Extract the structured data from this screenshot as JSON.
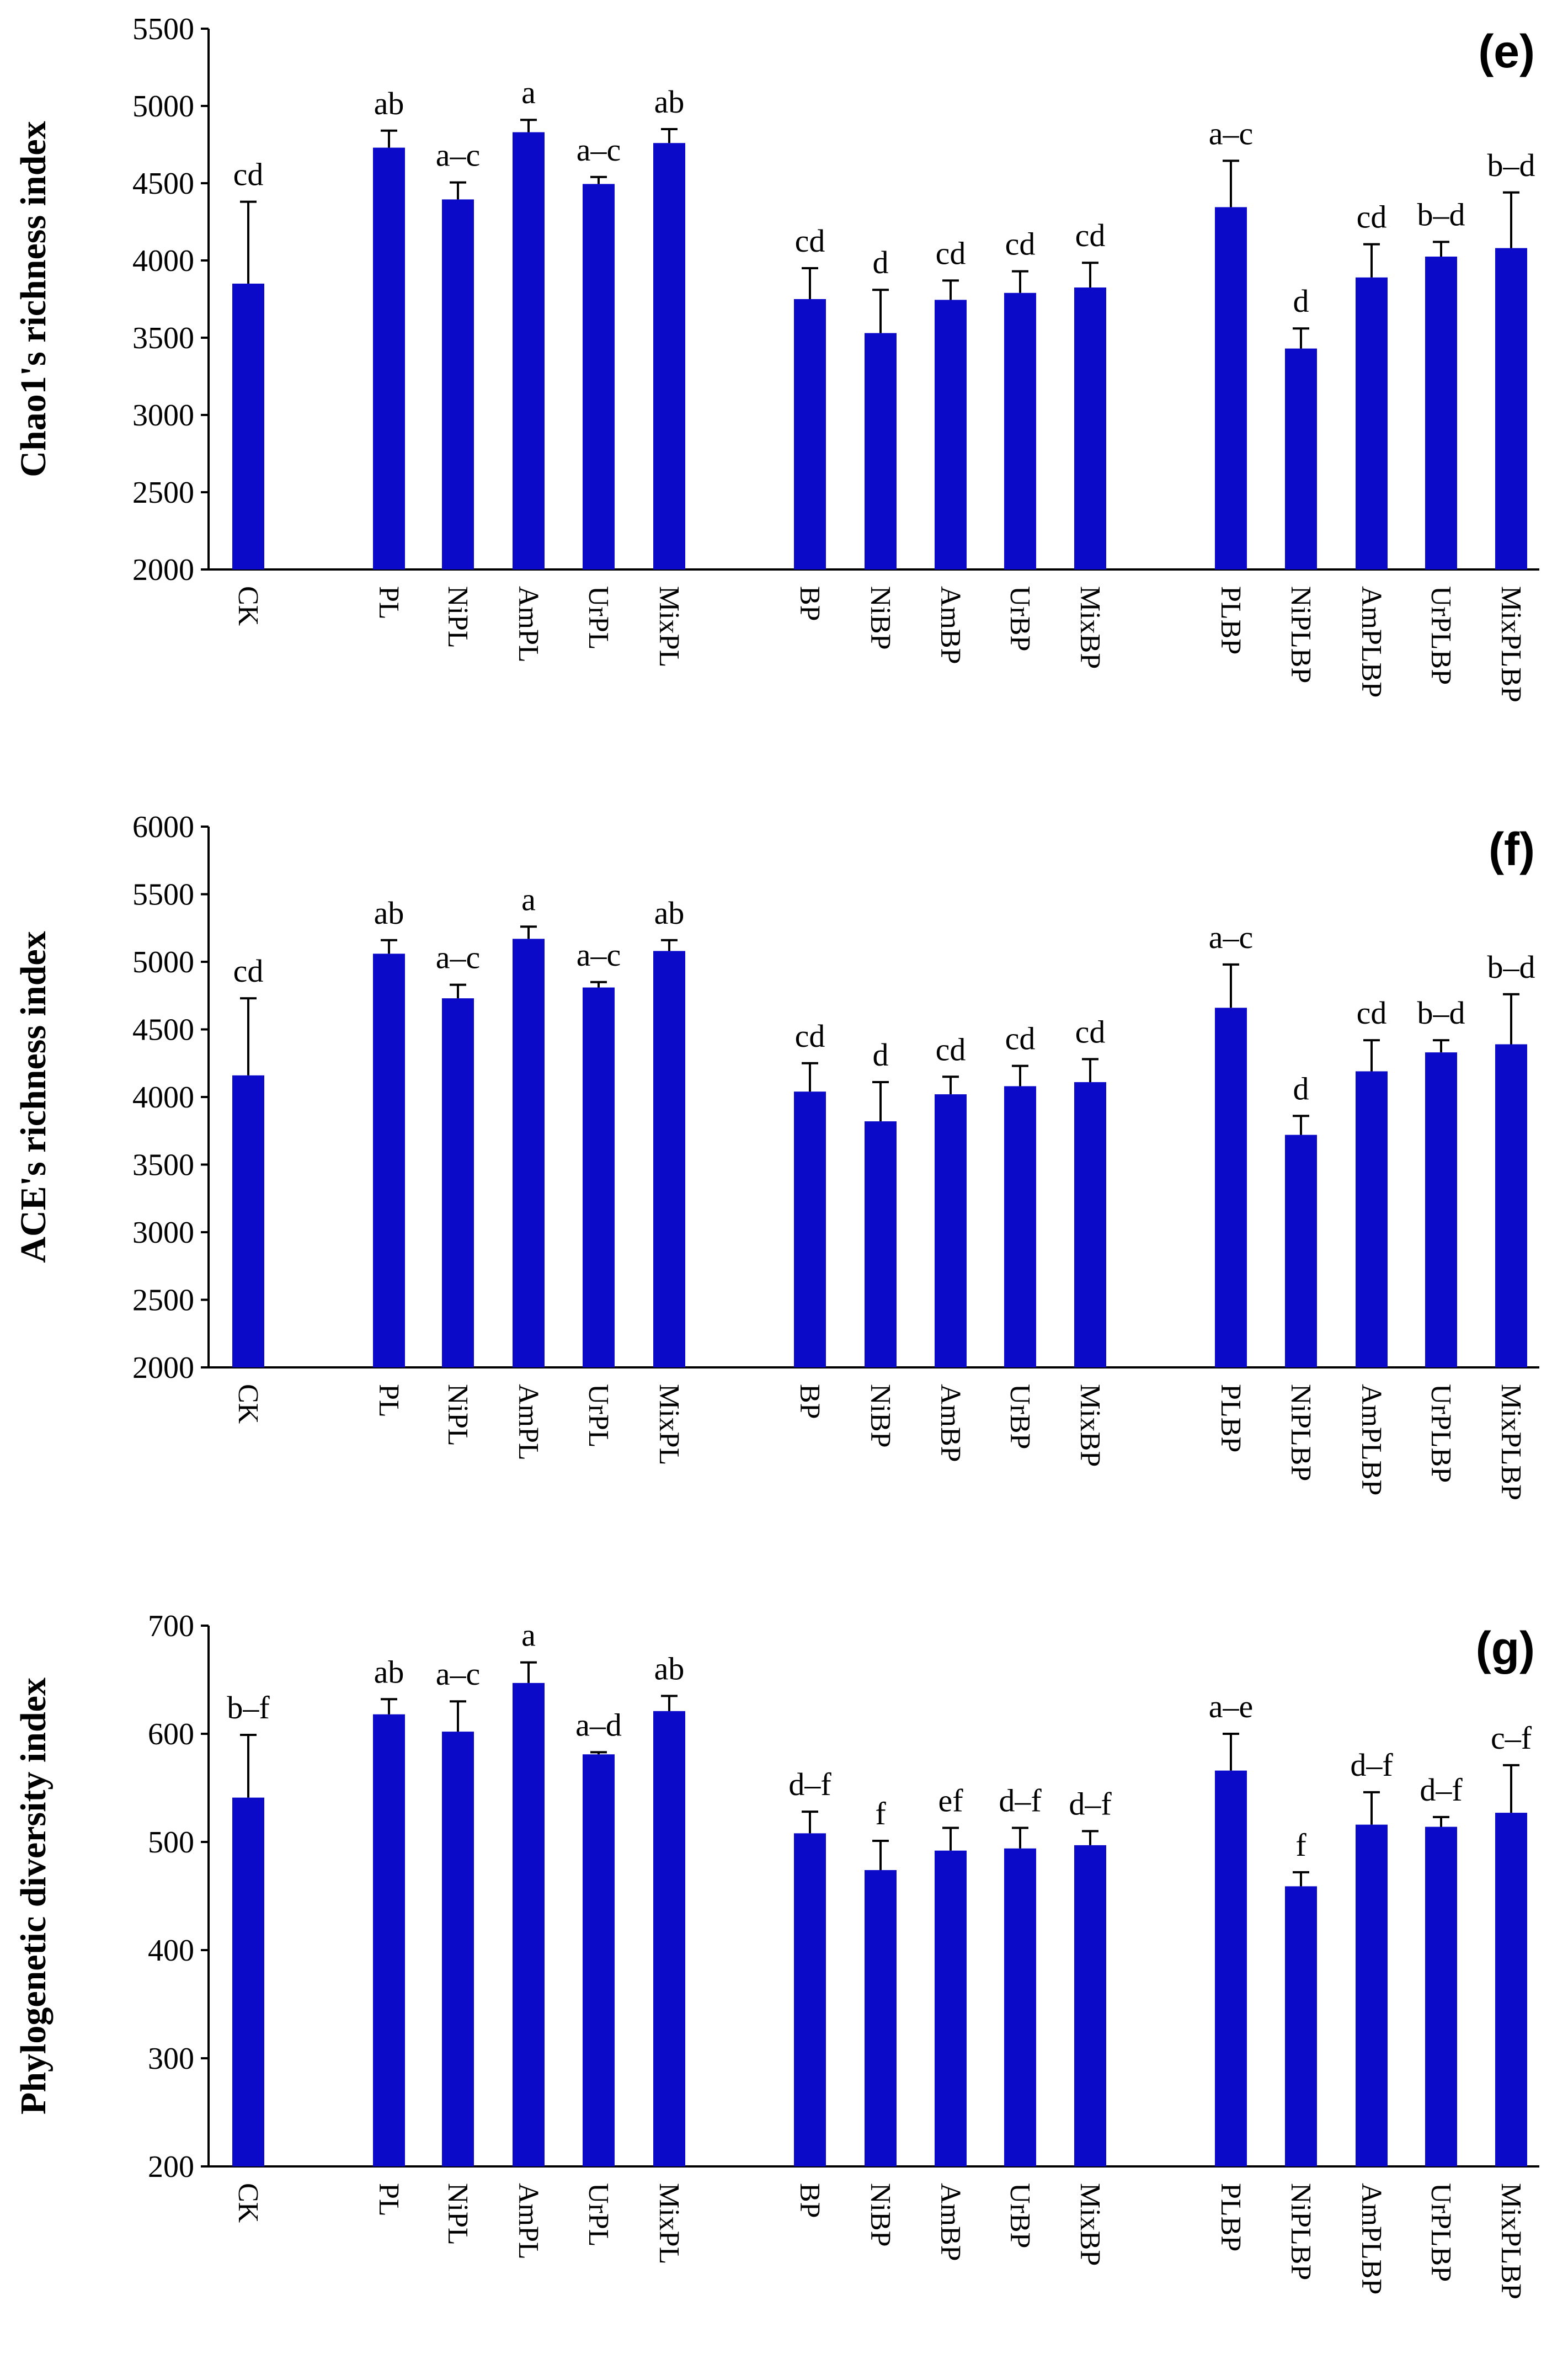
{
  "chart_data": [
    {
      "type": "bar",
      "panel_label": "(e)",
      "title": "",
      "xlabel": "",
      "ylabel": "Chao1's richness index",
      "ylim": [
        2000,
        5500
      ],
      "yticks": [
        2000,
        2500,
        3000,
        3500,
        4000,
        4500,
        5000,
        5500
      ],
      "categories": [
        "CK",
        "PL",
        "NiPL",
        "AmPL",
        "UrPL",
        "MixPL",
        "BP",
        "NiBP",
        "AmBP",
        "UrBP",
        "MixBP",
        "PLBP",
        "NiPLBP",
        "AmPLBP",
        "UrPLBP",
        "MixPLBP"
      ],
      "values": [
        3850,
        4730,
        4395,
        4830,
        4495,
        4760,
        3750,
        3530,
        3745,
        3790,
        3825,
        4345,
        3430,
        3890,
        4025,
        4080
      ],
      "errors": [
        530,
        110,
        110,
        80,
        45,
        90,
        200,
        280,
        125,
        140,
        160,
        300,
        130,
        215,
        95,
        360
      ],
      "letters": [
        "cd",
        "ab",
        "a–c",
        "a",
        "a–c",
        "ab",
        "cd",
        "d",
        "cd",
        "cd",
        "cd",
        "a–c",
        "d",
        "cd",
        "b–d",
        "b–d"
      ],
      "bar_color": "#0a0ac8",
      "grid": false
    },
    {
      "type": "bar",
      "panel_label": "(f)",
      "title": "",
      "xlabel": "",
      "ylabel": "ACE's richness index",
      "ylim": [
        2000,
        6000
      ],
      "yticks": [
        2000,
        2500,
        3000,
        3500,
        4000,
        4500,
        5000,
        5500,
        6000
      ],
      "categories": [
        "CK",
        "PL",
        "NiPL",
        "AmPL",
        "UrPL",
        "MixPL",
        "BP",
        "NiBP",
        "AmBP",
        "UrBP",
        "MixBP",
        "PLBP",
        "NiPLBP",
        "AmPLBP",
        "UrPLBP",
        "MixPLBP"
      ],
      "values": [
        4160,
        5060,
        4730,
        5170,
        4810,
        5080,
        4040,
        3820,
        4020,
        4080,
        4110,
        4660,
        3720,
        4190,
        4330,
        4390
      ],
      "errors": [
        570,
        100,
        100,
        90,
        40,
        80,
        210,
        290,
        130,
        150,
        170,
        320,
        140,
        230,
        90,
        370
      ],
      "letters": [
        "cd",
        "ab",
        "a–c",
        "a",
        "a–c",
        "ab",
        "cd",
        "d",
        "cd",
        "cd",
        "cd",
        "a–c",
        "d",
        "cd",
        "b–d",
        "b–d"
      ],
      "bar_color": "#0a0ac8",
      "grid": false
    },
    {
      "type": "bar",
      "panel_label": "(g)",
      "title": "",
      "xlabel": "",
      "ylabel": "Phylogenetic diversity index",
      "ylim": [
        200,
        700
      ],
      "yticks": [
        200,
        300,
        400,
        500,
        600,
        700
      ],
      "categories": [
        "CK",
        "PL",
        "NiPL",
        "AmPL",
        "UrPL",
        "MixPL",
        "BP",
        "NiBP",
        "AmBP",
        "UrBP",
        "MixBP",
        "PLBP",
        "NiPLBP",
        "AmPLBP",
        "UrPLBP",
        "MixPLBP"
      ],
      "values": [
        541,
        618,
        602,
        647,
        581,
        621,
        508,
        474,
        492,
        494,
        497,
        566,
        459,
        516,
        514,
        527
      ],
      "errors": [
        58,
        14,
        28,
        19,
        2,
        14,
        20,
        27,
        21,
        19,
        13,
        34,
        13,
        30,
        9,
        44
      ],
      "letters": [
        "b–f",
        "ab",
        "a–c",
        "a",
        "a–d",
        "ab",
        "d–f",
        "f",
        "ef",
        "d–f",
        "d–f",
        "a–e",
        "f",
        "d–f",
        "d–f",
        "c–f"
      ],
      "bar_color": "#0a0ac8",
      "grid": false
    }
  ]
}
